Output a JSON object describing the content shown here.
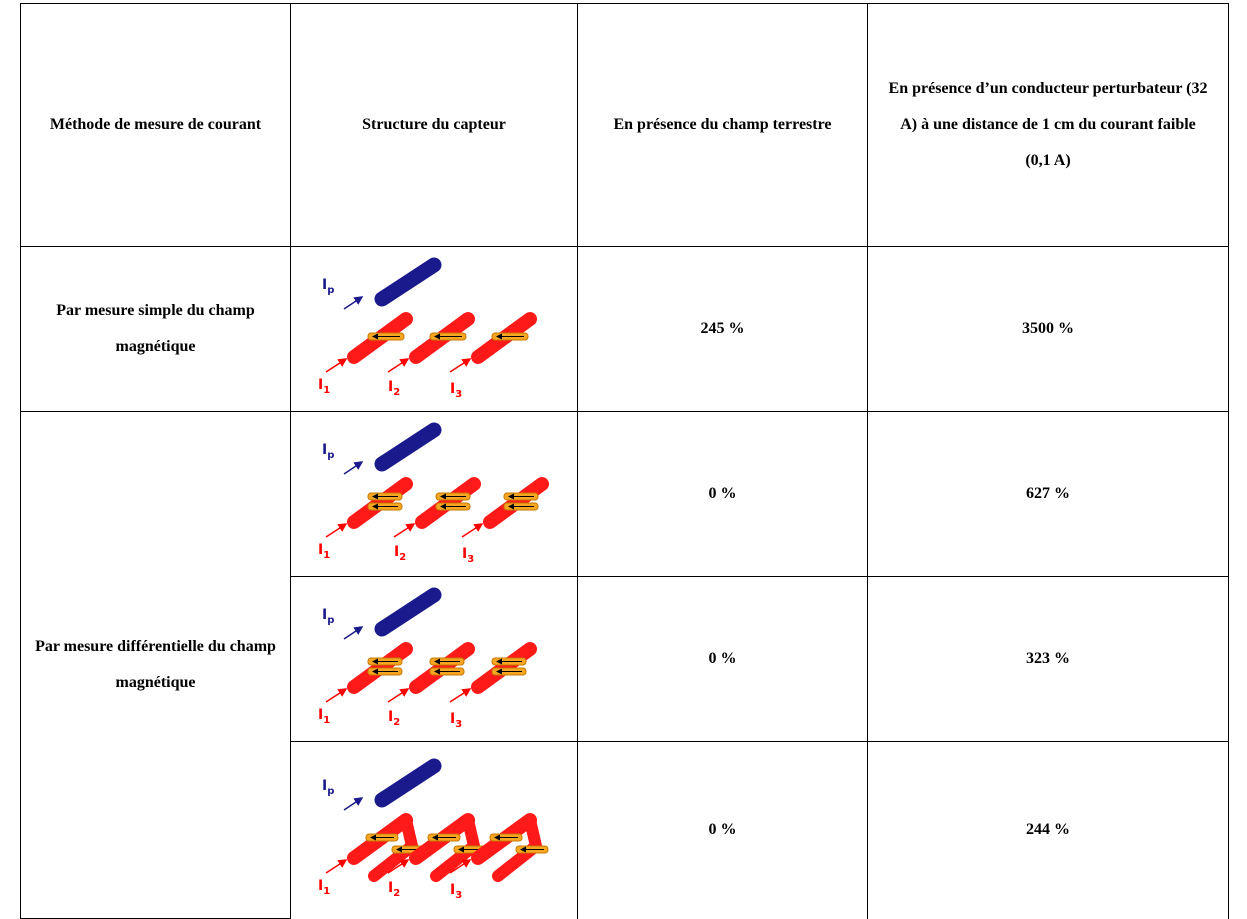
{
  "table": {
    "header": [
      "Méthode de mesure de courant",
      "Structure du capteur",
      "En présence du champ terrestre",
      "En présence d’un conducteur perturbateur (32 A) à une distance de 1 cm du courant faible (0,1 A)"
    ],
    "groups": [
      {
        "method": "Par mesure simple du champ magnétique",
        "rows": [
          {
            "terrestrial": "245 %",
            "perturbing": "3500 %"
          }
        ]
      },
      {
        "method": "Par mesure différentielle du champ magnétique",
        "rows": [
          {
            "terrestrial": "0 %",
            "perturbing": "627 %"
          },
          {
            "terrestrial": "0 %",
            "perturbing": "323 %"
          },
          {
            "terrestrial": "0 %",
            "perturbing": "244 %"
          }
        ]
      }
    ]
  },
  "diagram": {
    "symbol": "I",
    "subscripts": [
      "p",
      "1",
      "2",
      "3"
    ]
  }
}
